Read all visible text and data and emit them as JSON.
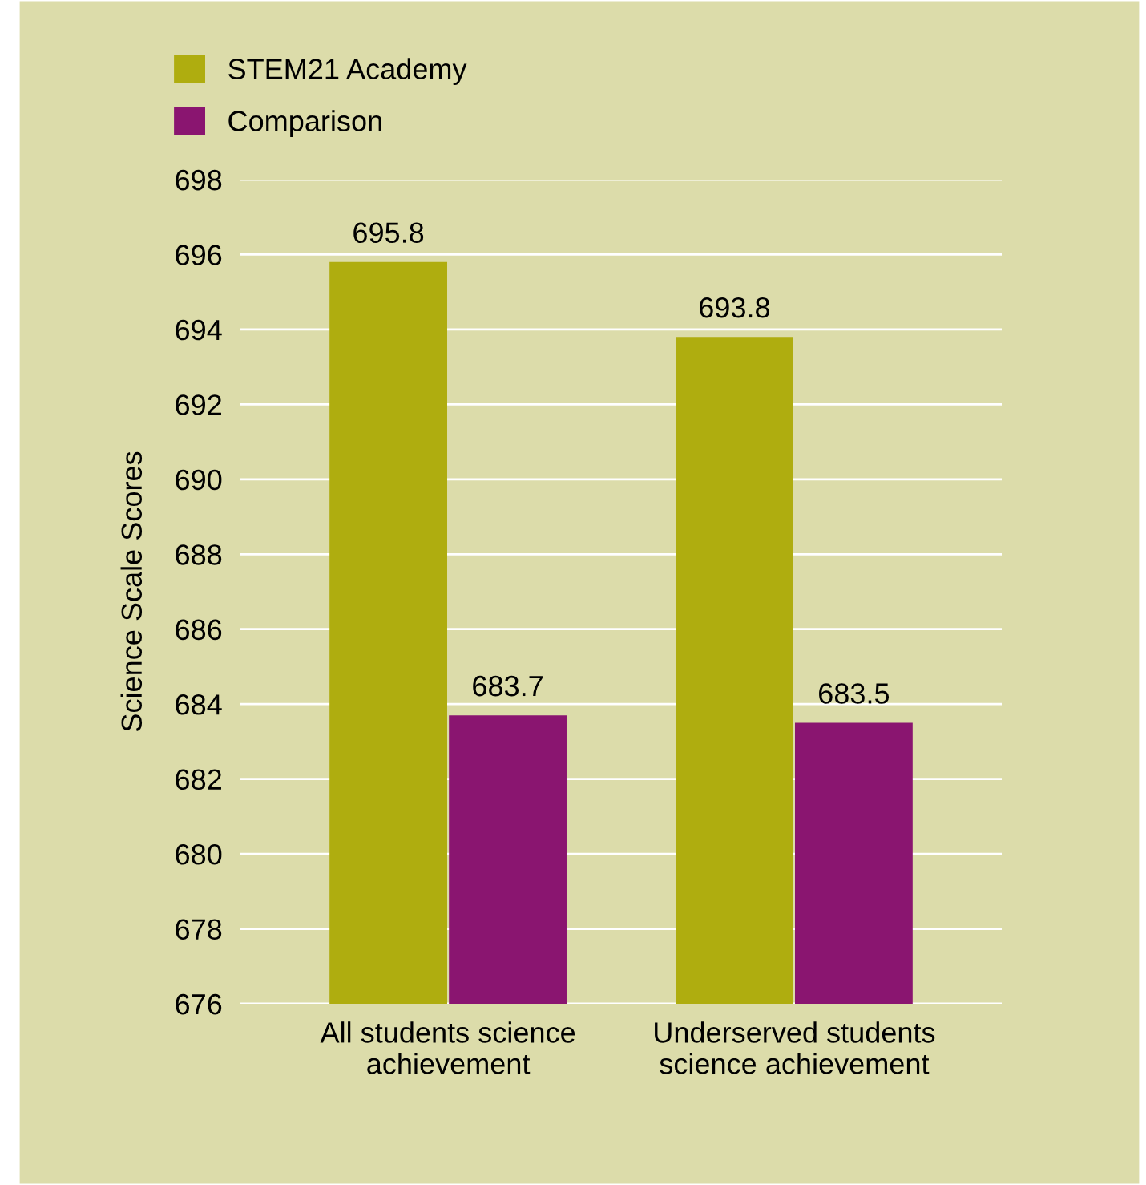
{
  "chart_data": {
    "type": "bar",
    "ylabel": "Science Scale Scores",
    "categories": [
      "All students science\nachievement",
      "Underserved students\nscience achievement"
    ],
    "series": [
      {
        "name": "STEM21 Academy",
        "color": "#afad0f",
        "values": [
          695.8,
          693.8
        ]
      },
      {
        "name": "Comparison",
        "color": "#8a1570",
        "values": [
          683.7,
          683.5
        ]
      }
    ],
    "ylim": [
      676,
      698
    ],
    "yticks": [
      676,
      678,
      680,
      682,
      684,
      686,
      688,
      690,
      692,
      694,
      696,
      698
    ],
    "grid": "y",
    "legend": "top left",
    "data_labels": true
  }
}
